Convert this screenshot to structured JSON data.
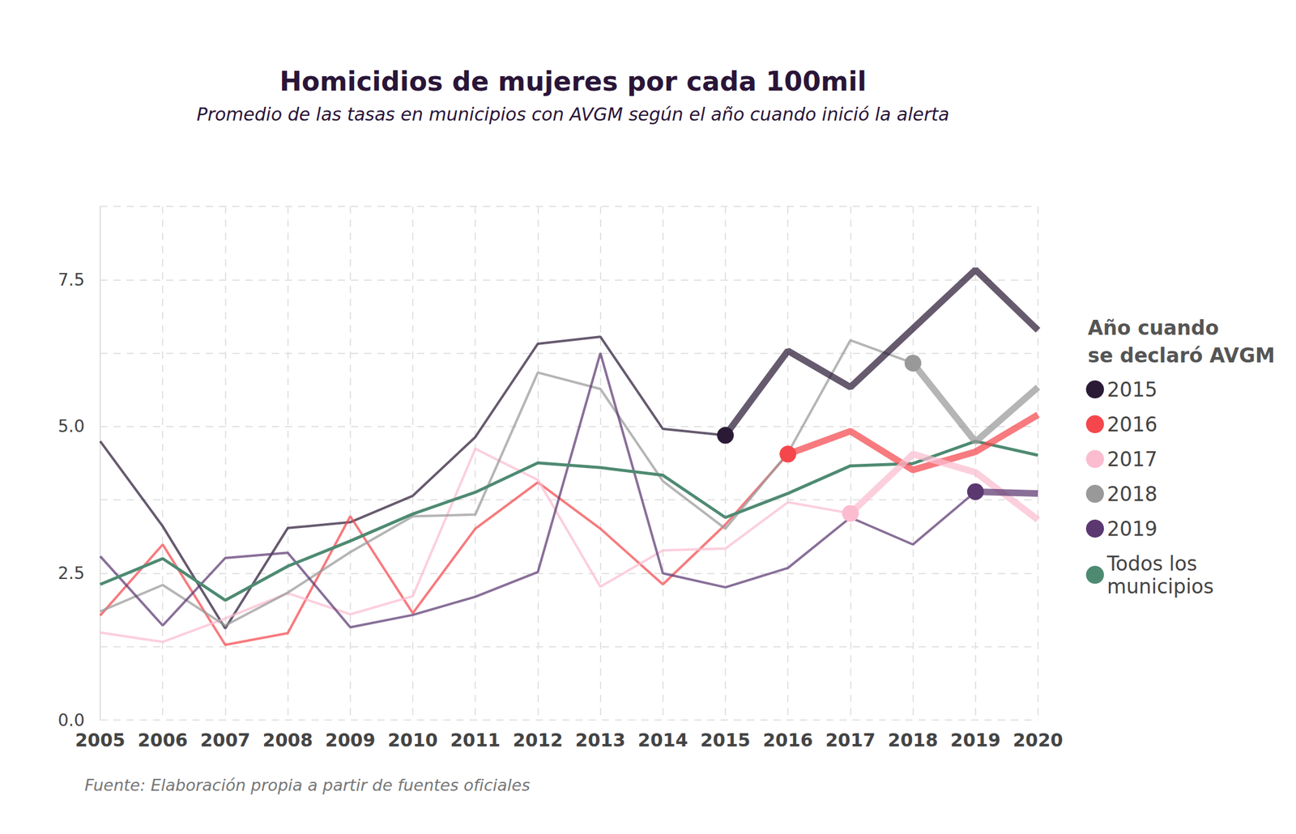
{
  "chart_data": {
    "type": "line",
    "title": "Homicidios de mujeres por cada 100mil",
    "subtitle": "Promedio de las tasas en municipios con AVGM según el año cuando inició la alerta",
    "caption": "Fuente: Elaboración propia a partir de fuentes oficiales",
    "legend_title": "Año cuando\nse declaró AVGM",
    "legend": "right",
    "grid": true,
    "categories": [
      "2005",
      "2006",
      "2007",
      "2008",
      "2009",
      "2010",
      "2011",
      "2012",
      "2013",
      "2014",
      "2015",
      "2016",
      "2017",
      "2018",
      "2019",
      "2020"
    ],
    "ylim": [
      0,
      8.75
    ],
    "yticks": [
      {
        "value": 0,
        "label": "0.0"
      },
      2.5,
      {
        "value": 5,
        "label": "5.0"
      },
      7.5
    ],
    "series": [
      {
        "name": "2015",
        "color": "#2b1a36",
        "values": [
          4.75,
          3.3,
          1.56,
          3.27,
          3.37,
          3.82,
          4.82,
          6.41,
          6.53,
          4.96,
          4.85,
          6.29,
          5.67,
          6.67,
          7.67,
          6.64
        ]
      },
      {
        "name": "2016",
        "color": "#f4474c",
        "values": [
          1.78,
          2.99,
          1.28,
          1.48,
          3.47,
          1.82,
          3.26,
          4.05,
          3.26,
          2.31,
          3.33,
          4.53,
          4.92,
          4.26,
          4.57,
          5.2
        ]
      },
      {
        "name": "2017",
        "color": "#fbbcd0",
        "values": [
          1.49,
          1.33,
          1.73,
          2.16,
          1.8,
          2.11,
          4.62,
          4.09,
          2.27,
          2.89,
          2.92,
          3.71,
          3.52,
          4.53,
          4.22,
          3.41
        ]
      },
      {
        "name": "2018",
        "color": "#999999",
        "values": [
          1.85,
          2.3,
          1.61,
          2.17,
          2.86,
          3.47,
          3.5,
          5.92,
          5.64,
          4.07,
          3.26,
          4.55,
          6.47,
          6.08,
          4.74,
          5.67
        ]
      },
      {
        "name": "2019",
        "color": "#5b3870",
        "values": [
          2.79,
          1.61,
          2.76,
          2.85,
          1.58,
          1.79,
          2.1,
          2.52,
          6.25,
          2.5,
          2.26,
          2.59,
          3.45,
          2.99,
          3.89,
          3.86
        ]
      },
      {
        "name": "Todos los municipios",
        "color": "#4e8a72",
        "values": [
          2.31,
          2.75,
          2.04,
          2.62,
          3.05,
          3.51,
          3.88,
          4.38,
          4.3,
          4.17,
          3.45,
          3.86,
          4.33,
          4.37,
          4.75,
          4.51
        ]
      }
    ]
  }
}
